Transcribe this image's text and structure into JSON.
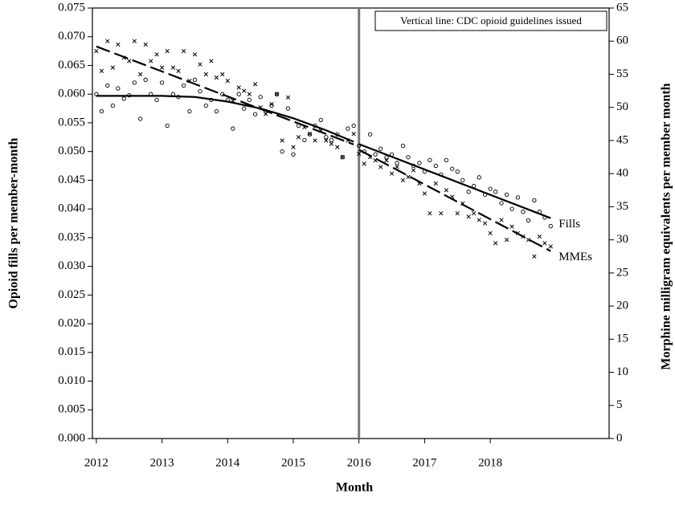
{
  "chart_data": {
    "type": "scatter",
    "x_label": "Month",
    "y_label": "Opioid fills per member-month",
    "y2_label": "Morphine milligram equivalents per member month",
    "annotation": "Vertical line: CDC opioid guidelines issued",
    "vline": 2016,
    "xlim": [
      2011.94,
      2019.81
    ],
    "xticks": [
      2012,
      2013,
      2014,
      2015,
      2016,
      2017,
      2018
    ],
    "ylim": [
      0,
      0.075
    ],
    "yticks": [
      {
        "value": 0,
        "label": "0.000"
      },
      {
        "value": 0.005,
        "label": "0.005"
      },
      {
        "value": 0.01,
        "label": "0.010"
      },
      {
        "value": 0.015,
        "label": "0.015"
      },
      {
        "value": 0.02,
        "label": "0.020"
      },
      {
        "value": 0.025,
        "label": "0.025"
      },
      {
        "value": 0.03,
        "label": "0.030"
      },
      {
        "value": 0.035,
        "label": "0.035"
      },
      {
        "value": 0.04,
        "label": "0.040"
      },
      {
        "value": 0.045,
        "label": "0.045"
      },
      {
        "value": 0.05,
        "label": "0.050"
      },
      {
        "value": 0.055,
        "label": "0.055"
      },
      {
        "value": 0.06,
        "label": "0.060"
      },
      {
        "value": 0.065,
        "label": "0.065"
      },
      {
        "value": 0.07,
        "label": "0.070"
      },
      {
        "value": 0.075,
        "label": "0.075"
      }
    ],
    "y2lim": [
      0,
      65
    ],
    "y2ticks": [
      0,
      5,
      10,
      15,
      20,
      25,
      30,
      35,
      40,
      45,
      50,
      55,
      60,
      65
    ],
    "x": [
      2012.0,
      2012.08,
      2012.17,
      2012.25,
      2012.33,
      2012.42,
      2012.5,
      2012.58,
      2012.67,
      2012.75,
      2012.83,
      2012.92,
      2013.0,
      2013.08,
      2013.17,
      2013.25,
      2013.33,
      2013.42,
      2013.5,
      2013.58,
      2013.67,
      2013.75,
      2013.83,
      2013.92,
      2014.0,
      2014.08,
      2014.17,
      2014.25,
      2014.33,
      2014.42,
      2014.5,
      2014.58,
      2014.67,
      2014.75,
      2014.83,
      2014.92,
      2015.0,
      2015.08,
      2015.17,
      2015.25,
      2015.33,
      2015.42,
      2015.5,
      2015.58,
      2015.67,
      2015.75,
      2015.83,
      2015.92,
      2016.0,
      2016.08,
      2016.17,
      2016.25,
      2016.33,
      2016.42,
      2016.5,
      2016.58,
      2016.67,
      2016.75,
      2016.83,
      2016.92,
      2017.0,
      2017.08,
      2017.17,
      2017.25,
      2017.33,
      2017.42,
      2017.5,
      2017.58,
      2017.67,
      2017.75,
      2017.83,
      2017.92,
      2018.0,
      2018.08,
      2018.17,
      2018.25,
      2018.33,
      2018.42,
      2018.5,
      2018.58,
      2018.67,
      2018.75,
      2018.83,
      2018.92
    ],
    "series": [
      {
        "name": "Fills",
        "axis": "y",
        "marker": "circle",
        "line_style": "solid",
        "color": "#000000",
        "values": [
          0.06,
          0.057,
          0.0615,
          0.058,
          0.061,
          0.0592,
          0.0598,
          0.062,
          0.0557,
          0.0625,
          0.06,
          0.059,
          0.062,
          0.0545,
          0.06,
          0.0595,
          0.0615,
          0.057,
          0.0625,
          0.0605,
          0.058,
          0.059,
          0.057,
          0.06,
          0.059,
          0.054,
          0.06,
          0.0575,
          0.059,
          0.0565,
          0.0595,
          0.057,
          0.058,
          0.06,
          0.05,
          0.0575,
          0.0495,
          0.0545,
          0.052,
          0.053,
          0.0545,
          0.0555,
          0.0525,
          0.052,
          0.053,
          0.049,
          0.054,
          0.0545,
          0.051,
          0.05,
          0.053,
          0.0495,
          0.0505,
          0.049,
          0.0495,
          0.048,
          0.051,
          0.049,
          0.0475,
          0.048,
          0.0465,
          0.0485,
          0.0475,
          0.046,
          0.0485,
          0.047,
          0.0465,
          0.045,
          0.043,
          0.044,
          0.0455,
          0.0425,
          0.0435,
          0.043,
          0.041,
          0.0425,
          0.04,
          0.042,
          0.0395,
          0.038,
          0.0415,
          0.0395,
          0.0385,
          0.037
        ],
        "fit": {
          "x": [
            2012,
            2013,
            2013.5,
            2014,
            2014.5,
            2015,
            2015.5,
            2015.92,
            null,
            2016,
            2018.92
          ],
          "values": [
            0.0597,
            0.0597,
            0.0595,
            0.0587,
            0.0575,
            0.0558,
            0.0537,
            0.0517,
            null,
            0.0513,
            0.0384
          ]
        }
      },
      {
        "name": "MMEs",
        "axis": "y2",
        "marker": "x",
        "line_style": "dashed",
        "color": "#000000",
        "values": [
          58.5,
          55.5,
          60.0,
          56.0,
          59.5,
          57.5,
          57.0,
          60.0,
          55.0,
          59.5,
          57.0,
          58.0,
          56.0,
          58.5,
          56.0,
          55.5,
          58.5,
          54.0,
          58.0,
          56.5,
          55.0,
          57.0,
          54.5,
          55.0,
          54.0,
          51.0,
          53.0,
          52.5,
          52.0,
          53.5,
          50.0,
          49.0,
          50.5,
          52.0,
          45.0,
          51.5,
          44.0,
          45.5,
          47.0,
          46.0,
          45.0,
          46.5,
          45.0,
          44.5,
          44.0,
          42.5,
          45.0,
          46.0,
          43.0,
          41.5,
          42.5,
          42.0,
          41.0,
          42.0,
          40.0,
          41.0,
          39.0,
          39.5,
          40.5,
          38.5,
          37.0,
          34.0,
          38.5,
          34.0,
          37.5,
          36.5,
          34.0,
          35.5,
          33.5,
          34.0,
          33.0,
          32.5,
          31.0,
          29.5,
          33.0,
          30.0,
          32.0,
          31.0,
          30.5,
          30.0,
          27.5,
          30.5,
          29.5,
          29.0
        ],
        "fit": {
          "x": [
            2012,
            2015.92,
            null,
            2016,
            2018.92
          ],
          "values": [
            59.2,
            44.4,
            null,
            43.6,
            28.3
          ]
        }
      }
    ]
  }
}
